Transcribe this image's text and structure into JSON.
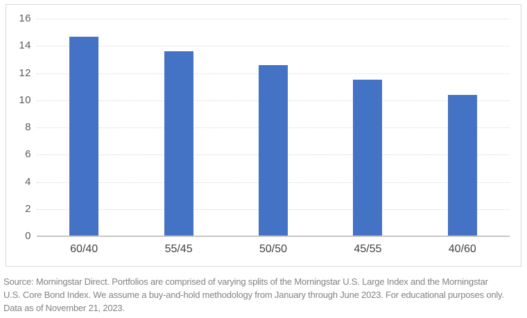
{
  "chart_data": {
    "type": "bar",
    "categories": [
      "60/40",
      "55/45",
      "50/50",
      "45/55",
      "40/60"
    ],
    "values": [
      14.7,
      13.6,
      12.6,
      11.5,
      10.4
    ],
    "title": "",
    "xlabel": "",
    "ylabel": "",
    "ylim": [
      0,
      16
    ],
    "yticks": [
      0,
      2,
      4,
      6,
      8,
      10,
      12,
      14,
      16
    ],
    "grid": true,
    "legend": "none",
    "bar_color": "#4472c4"
  },
  "colors": {
    "bar": "#4472c4",
    "gridline": "#d9d9d9",
    "frame_border": "#d9d9d9",
    "axis_line": "#c6c6c6",
    "ytick_label": "#595959",
    "xtick_label": "#404040",
    "footnote_text": "#828282",
    "background": "#ffffff"
  },
  "footnote": {
    "lines": [
      "Source: Morningstar Direct. Portfolios are comprised of varying splits of the Morningstar U.S. Large Index and the Morningstar",
      "U.S. Core Bond Index. We assume a buy-and-hold methodology from January through June 2023. For educational purposes only.",
      "Data as of November 21, 2023."
    ]
  }
}
